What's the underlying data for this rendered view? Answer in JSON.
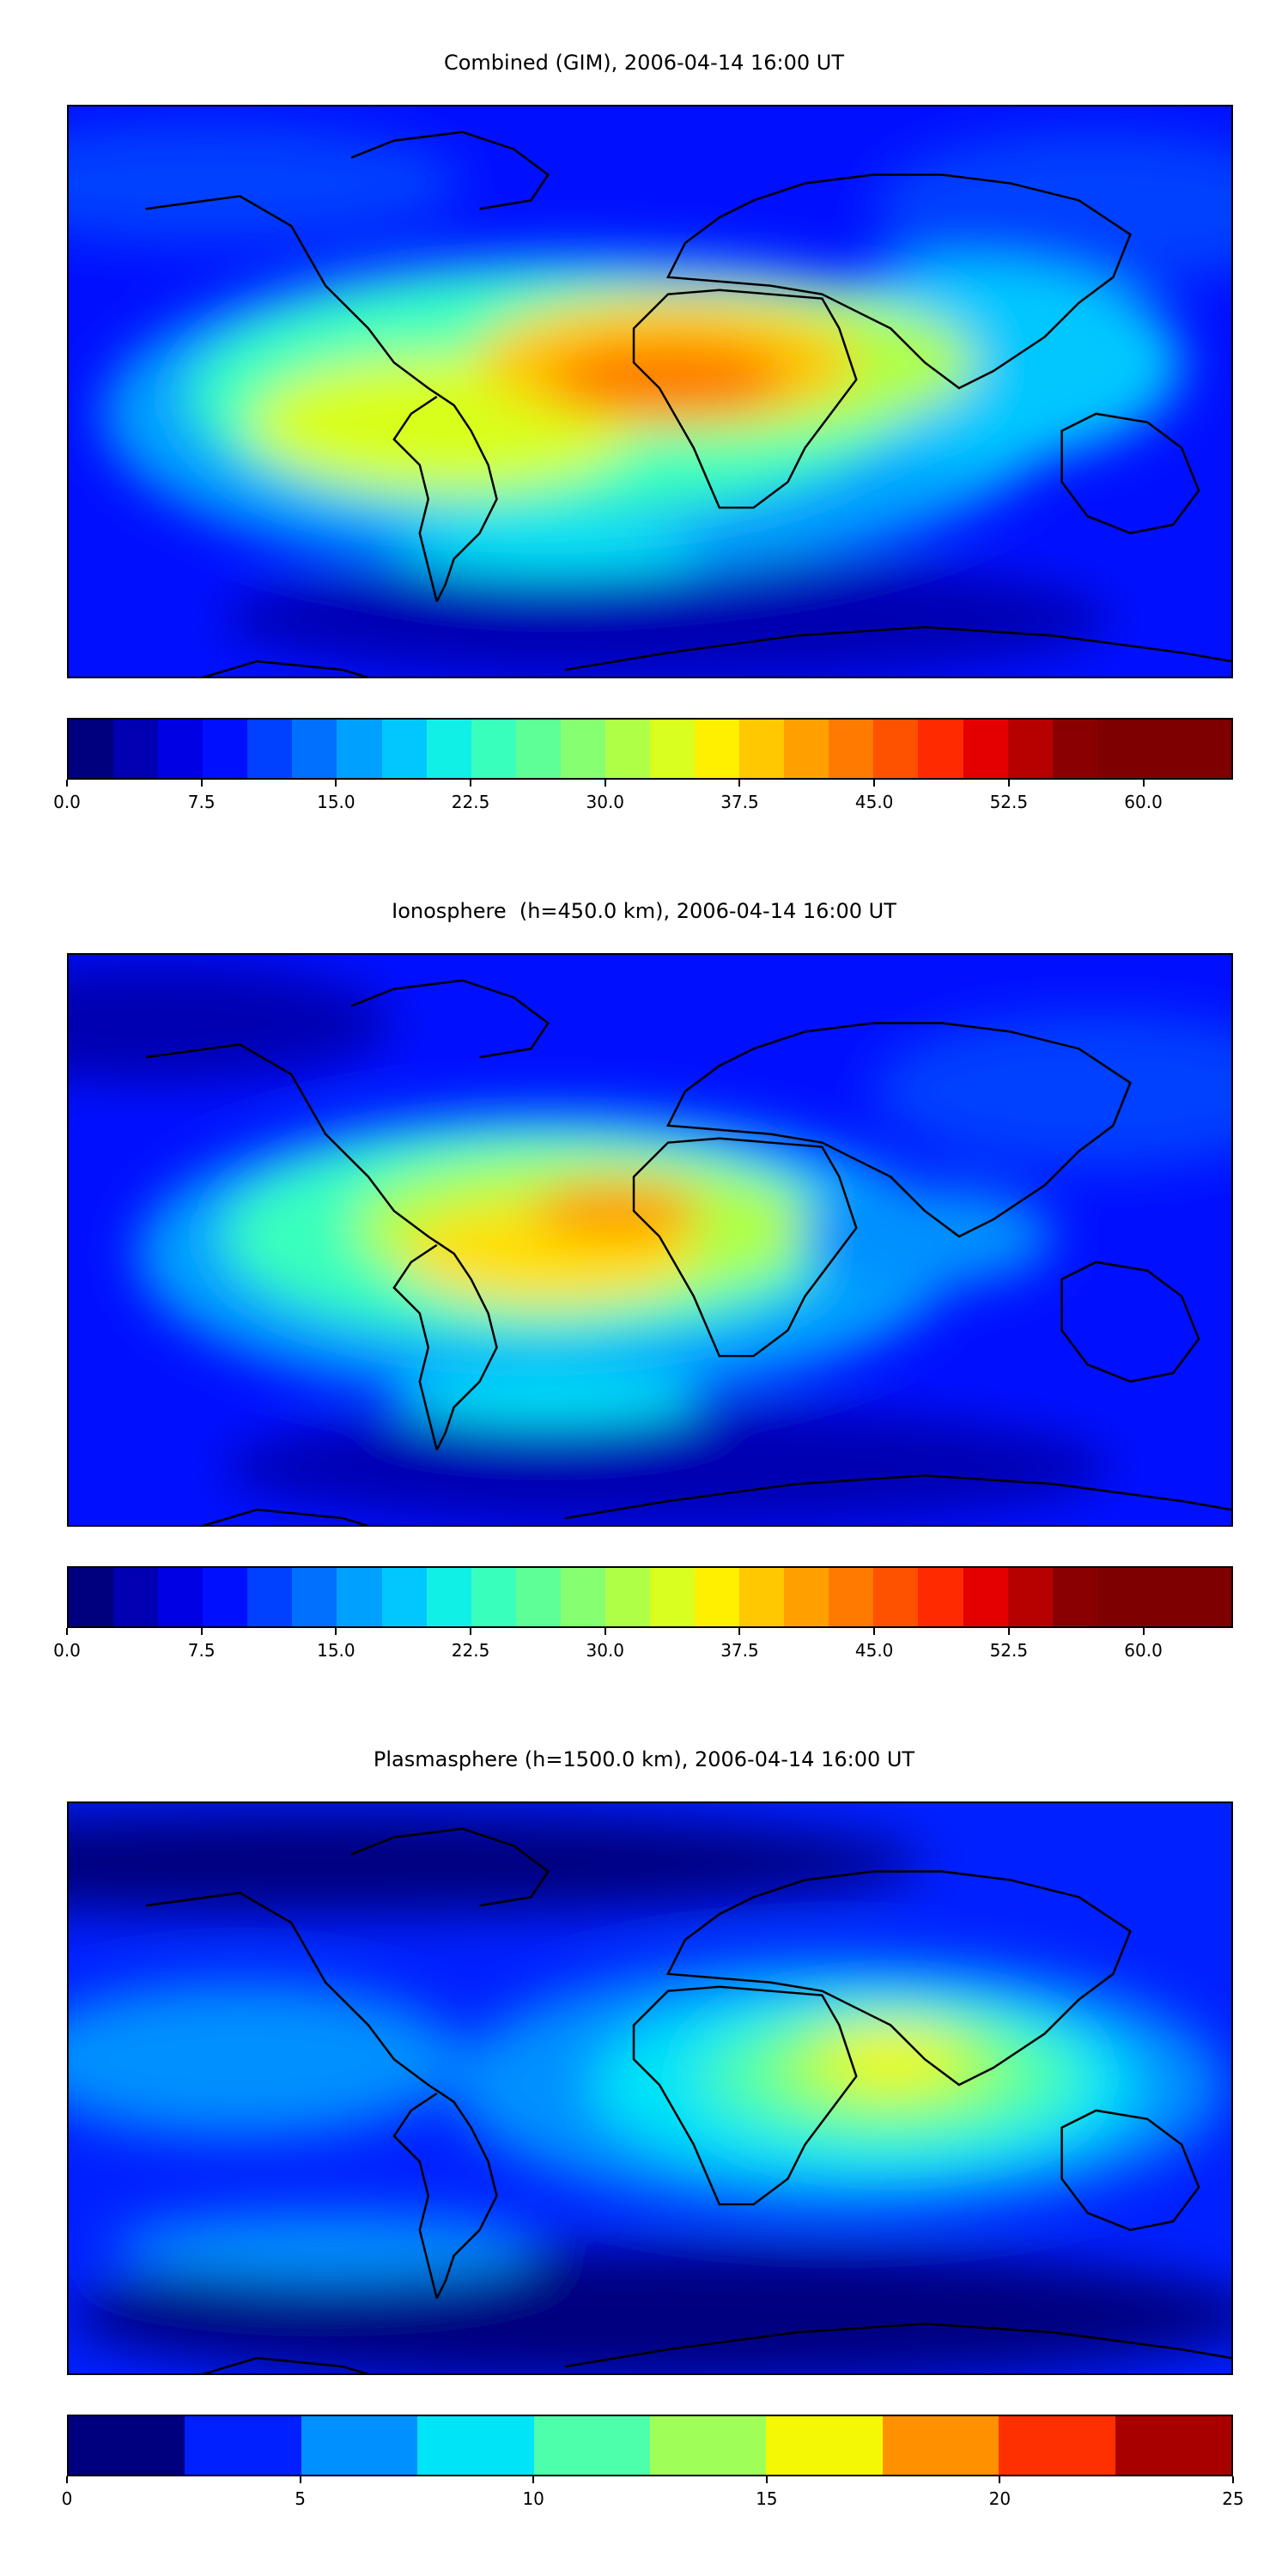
{
  "panels": [
    {
      "id": "combined",
      "title": "Combined (GIM), 2006-04-14 16:00 UT",
      "colorbar": {
        "levels": [
          0,
          2.5,
          5,
          7.5,
          10,
          12.5,
          15,
          17.5,
          20,
          22.5,
          25,
          27.5,
          30,
          32.5,
          35,
          37.5,
          40,
          42.5,
          45,
          47.5,
          50,
          52.5,
          55,
          57.5,
          60,
          62.5,
          65
        ],
        "colors": [
          "#00007f",
          "#0000b2",
          "#0000e5",
          "#0010ff",
          "#0040ff",
          "#0070ff",
          "#00a0ff",
          "#00c8ff",
          "#10f0e6",
          "#39ffbd",
          "#5fff97",
          "#86ff70",
          "#b0ff47",
          "#d8ff1f",
          "#fff000",
          "#ffc800",
          "#ffa000",
          "#ff7a00",
          "#ff5200",
          "#ff2a00",
          "#e50000",
          "#b70000",
          "#8a0000",
          "#7f0000",
          "#7f0000",
          "#7f0000"
        ],
        "tick_labels": [
          "0.0",
          "7.5",
          "15.0",
          "22.5",
          "30.0",
          "37.5",
          "45.0",
          "52.5",
          "60.0"
        ],
        "tick_values": [
          0,
          7.5,
          15,
          22.5,
          30,
          37.5,
          45,
          52.5,
          60
        ],
        "vmin": 0,
        "vmax": 65
      },
      "field_extent": {
        "lon": [
          -180,
          180
        ],
        "lat": [
          -90,
          90
        ]
      }
    },
    {
      "id": "ionosphere",
      "title": "Ionosphere  (h=450.0 km), 2006-04-14 16:00 UT",
      "colorbar": {
        "levels": [
          0,
          2.5,
          5,
          7.5,
          10,
          12.5,
          15,
          17.5,
          20,
          22.5,
          25,
          27.5,
          30,
          32.5,
          35,
          37.5,
          40,
          42.5,
          45,
          47.5,
          50,
          52.5,
          55,
          57.5,
          60,
          62.5,
          65
        ],
        "tick_labels": [
          "0.0",
          "7.5",
          "15.0",
          "22.5",
          "30.0",
          "37.5",
          "45.0",
          "52.5",
          "60.0"
        ],
        "tick_values": [
          0,
          7.5,
          15,
          22.5,
          30,
          37.5,
          45,
          52.5,
          60
        ],
        "vmin": 0,
        "vmax": 65
      },
      "field_extent": {
        "lon": [
          -180,
          180
        ],
        "lat": [
          -90,
          90
        ]
      }
    },
    {
      "id": "plasmasphere",
      "title": "Plasmasphere (h=1500.0 km), 2006-04-14 16:00 UT",
      "colorbar": {
        "levels": [
          0,
          2.5,
          5,
          7.5,
          10,
          12.5,
          15,
          17.5,
          20,
          22.5,
          25
        ],
        "colors": [
          "#00007f",
          "#0020ff",
          "#0090ff",
          "#00e4f8",
          "#4dffaa",
          "#a0ff56",
          "#f4f802",
          "#ff9000",
          "#ff3000",
          "#a80000"
        ],
        "tick_labels": [
          "0",
          "5",
          "10",
          "15",
          "20",
          "25"
        ],
        "tick_values": [
          0,
          5,
          10,
          15,
          20,
          25
        ],
        "vmin": 0,
        "vmax": 25
      },
      "field_extent": {
        "lon": [
          -180,
          180
        ],
        "lat": [
          -90,
          90
        ]
      }
    }
  ]
}
